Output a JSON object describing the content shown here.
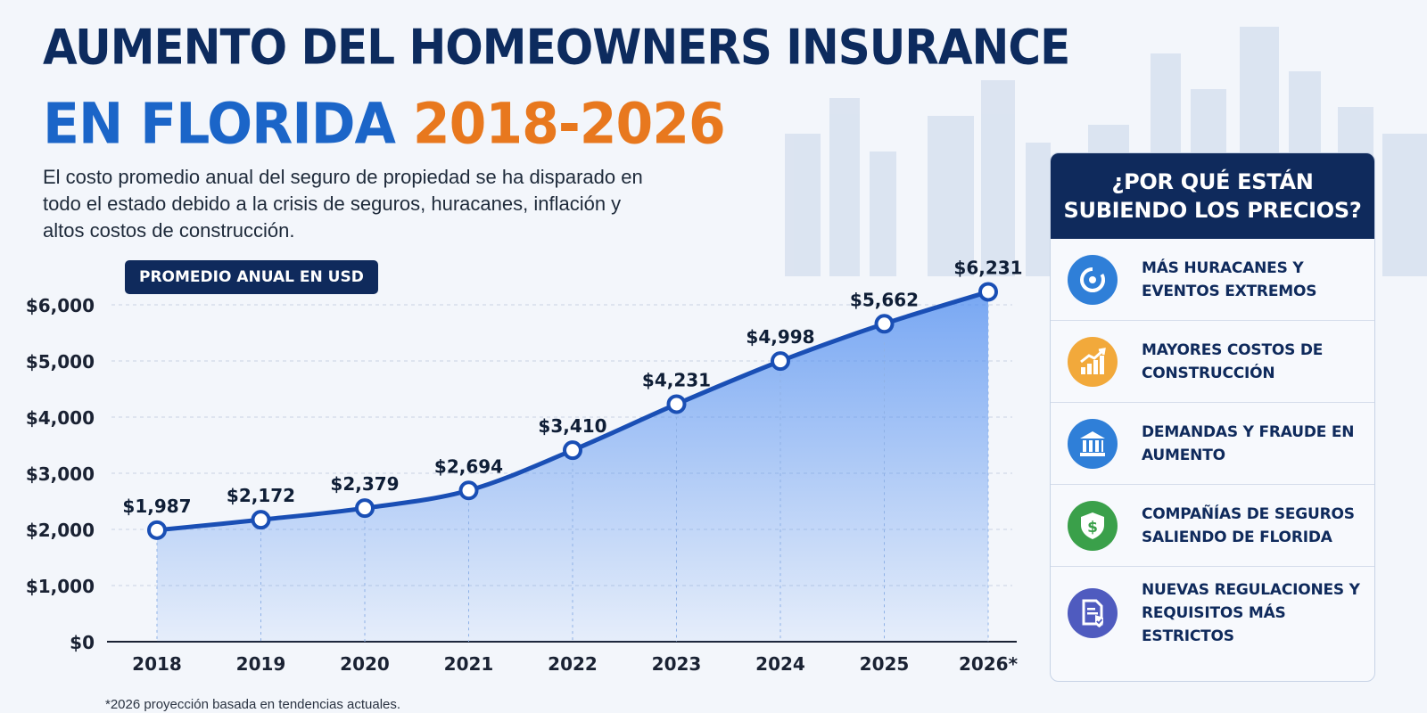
{
  "header": {
    "title_line1": "AUMENTO DEL HOMEOWNERS INSURANCE",
    "title_line2_part1": "EN FLORIDA",
    "title_line2_part2": "2018-2026",
    "subtitle": "El costo promedio anual del seguro de propiedad se ha disparado en todo el estado debido a la crisis de seguros, huracanes, inflación y altos costos de construcción."
  },
  "badge": "PROMEDIO ANUAL EN USD",
  "chart_data": {
    "type": "area",
    "title": "",
    "xlabel": "",
    "ylabel": "",
    "ylim": [
      0,
      6000
    ],
    "yticks": [
      "$0",
      "$1,000",
      "$2,000",
      "$3,000",
      "$4,000",
      "$5,000",
      "$6,000"
    ],
    "categories": [
      "2018",
      "2019",
      "2020",
      "2021",
      "2022",
      "2023",
      "2024",
      "2025",
      "2026*"
    ],
    "values": [
      1987,
      2172,
      2379,
      2694,
      3410,
      4231,
      4998,
      5662,
      6231
    ],
    "data_labels": [
      "$1,987",
      "$2,172",
      "$2,379",
      "$2,694",
      "$3,410",
      "$4,231",
      "$4,998",
      "$5,662",
      "$6,231"
    ],
    "grid": true,
    "colors": {
      "line": "#1a4fb5",
      "fill": "#4f8df0"
    }
  },
  "footnote": "*2026 proyección basada en tendencias actuales.",
  "panel": {
    "title": "¿POR QUÉ ESTÁN SUBIENDO LOS PRECIOS?",
    "reasons": [
      {
        "icon": "hurricane-icon",
        "color": "#2f7fd8",
        "text": "MÁS HURACANES Y EVENTOS EXTREMOS"
      },
      {
        "icon": "rising-chart-icon",
        "color": "#f2a93b",
        "text": "MAYORES COSTOS DE CONSTRUCCIÓN"
      },
      {
        "icon": "courthouse-icon",
        "color": "#2f7fd8",
        "text": "DEMANDAS Y FRAUDE EN AUMENTO"
      },
      {
        "icon": "shield-dollar-icon",
        "color": "#3aa04a",
        "text": "COMPAÑÍAS DE SEGUROS SALIENDO DE FLORIDA"
      },
      {
        "icon": "document-check-icon",
        "color": "#4f5bbf",
        "text": "NUEVAS REGULACIONES Y REQUISITOS MÁS ESTRICTOS"
      }
    ]
  }
}
